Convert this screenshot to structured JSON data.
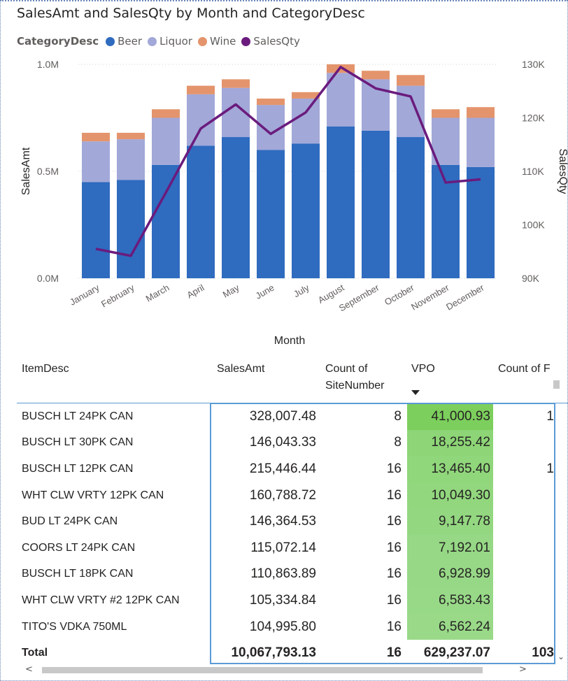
{
  "chart_title": "SalesAmt and SalesQty by Month and CategoryDesc",
  "legend": {
    "title": "CategoryDesc",
    "items": [
      {
        "label": "Beer",
        "color": "#2f6bbf"
      },
      {
        "label": "Liquor",
        "color": "#a2a8d8"
      },
      {
        "label": "Wine",
        "color": "#e4946c"
      },
      {
        "label": "SalesQty",
        "color": "#6a1b7d"
      }
    ]
  },
  "chart_data": {
    "type": "bar",
    "stacked": true,
    "categories": [
      "January",
      "February",
      "March",
      "April",
      "May",
      "June",
      "July",
      "August",
      "September",
      "October",
      "November",
      "December"
    ],
    "series": [
      {
        "name": "Beer",
        "values": [
          0.45,
          0.46,
          0.53,
          0.62,
          0.66,
          0.6,
          0.63,
          0.71,
          0.69,
          0.66,
          0.53,
          0.52
        ],
        "color": "#2f6bbf"
      },
      {
        "name": "Liquor",
        "values": [
          0.19,
          0.19,
          0.22,
          0.24,
          0.23,
          0.21,
          0.21,
          0.25,
          0.24,
          0.24,
          0.22,
          0.23
        ],
        "color": "#a2a8d8"
      },
      {
        "name": "Wine",
        "values": [
          0.04,
          0.03,
          0.04,
          0.04,
          0.04,
          0.03,
          0.03,
          0.04,
          0.04,
          0.05,
          0.04,
          0.05
        ],
        "color": "#e4946c"
      }
    ],
    "line_series": {
      "name": "SalesQty",
      "axis": "right",
      "values": [
        95500,
        94200,
        106000,
        118000,
        122500,
        117000,
        121000,
        129500,
        125500,
        124000,
        107900,
        108500
      ],
      "color": "#6a1b7d"
    },
    "xlabel": "Month",
    "ylabel": "SalesAmt",
    "y2label": "SalesQty",
    "ylim": [
      0,
      1.0
    ],
    "y2lim": [
      90000,
      130000
    ],
    "y_ticks": [
      "0.0M",
      "0.5M",
      "1.0M"
    ],
    "y2_ticks": [
      "90K",
      "100K",
      "110K",
      "120K",
      "130K"
    ]
  },
  "table": {
    "columns": [
      "ItemDesc",
      "SalesAmt",
      "Count of SiteNumber",
      "VPO",
      "Count of F"
    ],
    "rows": [
      {
        "item": "BUSCH LT 24PK CAN",
        "amt": "328,007.48",
        "cnt": "8",
        "vpo": "41,000.93",
        "extra": "1",
        "vpo_level": 1.0
      },
      {
        "item": "BUSCH LT 30PK CAN",
        "amt": "146,043.33",
        "cnt": "8",
        "vpo": "18,255.42",
        "extra": "",
        "vpo_level": 0.62
      },
      {
        "item": "BUSCH LT 12PK CAN",
        "amt": "215,446.44",
        "cnt": "16",
        "vpo": "13,465.40",
        "extra": "1",
        "vpo_level": 0.55
      },
      {
        "item": "WHT CLW VRTY 12PK CAN",
        "amt": "160,788.72",
        "cnt": "16",
        "vpo": "10,049.30",
        "extra": "",
        "vpo_level": 0.5
      },
      {
        "item": "BUD LT 24PK CAN",
        "amt": "146,364.53",
        "cnt": "16",
        "vpo": "9,147.78",
        "extra": "",
        "vpo_level": 0.45
      },
      {
        "item": "COORS LT 24PK CAN",
        "amt": "115,072.14",
        "cnt": "16",
        "vpo": "7,192.01",
        "extra": "",
        "vpo_level": 0.4
      },
      {
        "item": "BUSCH LT 18PK CAN",
        "amt": "110,863.89",
        "cnt": "16",
        "vpo": "6,928.99",
        "extra": "",
        "vpo_level": 0.38
      },
      {
        "item": "WHT CLW VRTY #2 12PK CAN",
        "amt": "105,334.84",
        "cnt": "16",
        "vpo": "6,583.43",
        "extra": "",
        "vpo_level": 0.36
      },
      {
        "item": "TITO'S VDKA 750ML",
        "amt": "104,995.80",
        "cnt": "16",
        "vpo": "6,562.24",
        "extra": "",
        "vpo_level": 0.35
      }
    ],
    "total": {
      "item": "Total",
      "amt": "10,067,793.13",
      "cnt": "16",
      "vpo": "629,237.07",
      "extra": "103"
    }
  },
  "colors": {
    "vpo_high": "#7ccf5c",
    "vpo_low": "#a8dea0",
    "selection": "#5b9bd5"
  }
}
